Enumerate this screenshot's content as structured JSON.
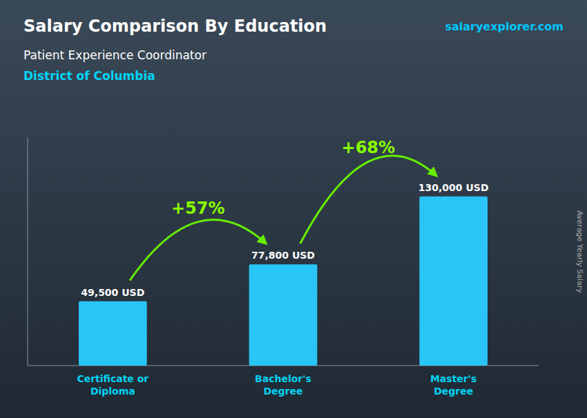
{
  "chart_data": {
    "type": "bar",
    "title": "Salary Comparison By Education",
    "subtitle": [
      "Patient Experience Coordinator",
      "District of Columbia"
    ],
    "ylabel": "Average Yearly Salary",
    "categories": [
      "Certificate or\nDiploma",
      "Bachelor's\nDegree",
      "Master's\nDegree"
    ],
    "values": [
      49500,
      77800,
      130000
    ],
    "value_labels": [
      "49,500 USD",
      "77,800 USD",
      "130,000 USD"
    ],
    "annotations": [
      "+57%",
      "+68%",
      "salaryexplorer.com"
    ],
    "color": "#29c5f6",
    "ylim": [
      0,
      175000
    ],
    "tick_labels": "x"
  }
}
